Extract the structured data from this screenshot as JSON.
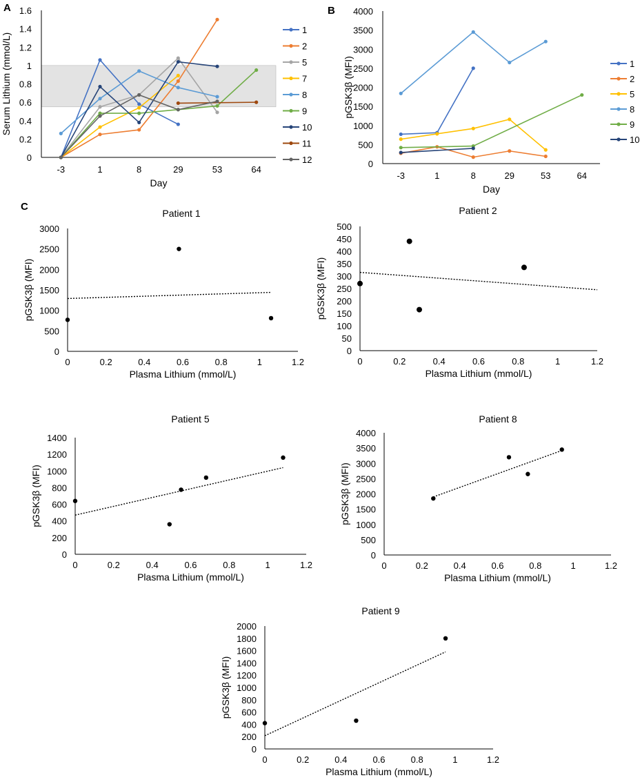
{
  "chart_data": [
    {
      "panel": "A",
      "type": "line",
      "title": "",
      "xlabel": "Day",
      "ylabel": "Serum Lithium (mmol/L)",
      "categories": [
        "-3",
        "1",
        "8",
        "29",
        "53",
        "64"
      ],
      "ylim": [
        0,
        1.6
      ],
      "yticks": [
        "0",
        "0.2",
        "0.4",
        "0.6",
        "0.8",
        "1",
        "1.2",
        "1.4",
        "1.6"
      ],
      "shaded_band": [
        0.55,
        1.0
      ],
      "band_color": "#e3e3e3",
      "grid": false,
      "legend": "right",
      "series": [
        {
          "name": "1",
          "color": "#4472C4",
          "values": [
            0,
            1.06,
            0.58,
            0.36,
            null,
            null
          ]
        },
        {
          "name": "2",
          "color": "#ED7D31",
          "values": [
            0,
            0.25,
            0.3,
            0.83,
            1.5,
            null
          ]
        },
        {
          "name": "5",
          "color": "#A5A5A5",
          "values": [
            0,
            0.55,
            0.68,
            1.08,
            0.49,
            null
          ]
        },
        {
          "name": "7",
          "color": "#FFC000",
          "values": [
            0,
            0.33,
            0.54,
            0.89,
            null,
            null
          ]
        },
        {
          "name": "8",
          "color": "#5B9BD5",
          "values": [
            0.26,
            0.64,
            0.94,
            0.76,
            0.66,
            null
          ]
        },
        {
          "name": "9",
          "color": "#70AD47",
          "values": [
            0,
            0.48,
            0.48,
            0.52,
            0.56,
            0.95
          ]
        },
        {
          "name": "10",
          "color": "#264478",
          "values": [
            0,
            0.77,
            0.38,
            1.04,
            0.99,
            null
          ]
        },
        {
          "name": "11",
          "color": "#9E480E",
          "values": [
            null,
            null,
            null,
            0.59,
            null,
            0.6
          ]
        },
        {
          "name": "12",
          "color": "#636363",
          "values": [
            0,
            0.45,
            0.68,
            0.52,
            0.61,
            null
          ]
        }
      ]
    },
    {
      "panel": "B",
      "type": "line",
      "title": "",
      "xlabel": "Day",
      "ylabel": "pGSK3β (MFI)",
      "categories": [
        "-3",
        "1",
        "8",
        "29",
        "53",
        "64"
      ],
      "ylim": [
        0,
        4000
      ],
      "yticks": [
        "0",
        "500",
        "1000",
        "1500",
        "2000",
        "2500",
        "3000",
        "3500",
        "4000"
      ],
      "grid": false,
      "legend": "right",
      "series": [
        {
          "name": "1",
          "color": "#4472C4",
          "values": [
            770,
            810,
            2500,
            null,
            null,
            null
          ]
        },
        {
          "name": "2",
          "color": "#ED7D31",
          "values": [
            270,
            440,
            170,
            330,
            190,
            null
          ]
        },
        {
          "name": "5",
          "color": "#FFC000",
          "values": [
            640,
            780,
            920,
            1160,
            360,
            null
          ]
        },
        {
          "name": "8",
          "color": "#5B9BD5",
          "values": [
            1840,
            null,
            3450,
            2650,
            3200,
            null
          ]
        },
        {
          "name": "9",
          "color": "#70AD47",
          "values": [
            420,
            null,
            460,
            null,
            null,
            1800
          ]
        },
        {
          "name": "10",
          "color": "#264478",
          "values": [
            290,
            null,
            400,
            null,
            null,
            null
          ]
        }
      ]
    },
    {
      "panel": "C",
      "type": "scatter",
      "title": "Patient 1",
      "xlabel": "Plasma Lithium (mmol/L)",
      "ylabel": "pGSK3β (MFI)",
      "xlim": [
        0,
        1.2
      ],
      "ylim": [
        0,
        3000
      ],
      "xticks": [
        "0",
        "0.2",
        "0.4",
        "0.6",
        "0.8",
        "1",
        "1.2"
      ],
      "yticks": [
        "0",
        "500",
        "1000",
        "1500",
        "2000",
        "2500",
        "3000"
      ],
      "points": [
        {
          "x": 0,
          "y": 770
        },
        {
          "x": 0.58,
          "y": 2500
        },
        {
          "x": 1.06,
          "y": 810
        }
      ],
      "trendline": {
        "x": [
          0,
          1.06
        ],
        "y": [
          1290,
          1440
        ]
      }
    },
    {
      "panel": "C",
      "type": "scatter",
      "title": "Patient 2",
      "xlabel": "Plasma Lithium (mmol/L)",
      "ylabel": "pGSK3β (MFI)",
      "xlim": [
        0,
        1.2
      ],
      "ylim": [
        0,
        500
      ],
      "xticks": [
        "0",
        "0.2",
        "0.4",
        "0.6",
        "0.8",
        "1",
        "1.2"
      ],
      "yticks": [
        "0",
        "50",
        "100",
        "150",
        "200",
        "250",
        "300",
        "350",
        "400",
        "450",
        "500"
      ],
      "points": [
        {
          "x": 0,
          "y": 270
        },
        {
          "x": 0.25,
          "y": 440
        },
        {
          "x": 0.3,
          "y": 165
        },
        {
          "x": 0.83,
          "y": 335
        }
      ],
      "trendline": {
        "x": [
          0,
          1.2
        ],
        "y": [
          315,
          245
        ]
      }
    },
    {
      "panel": "C",
      "type": "scatter",
      "title": "Patient 5",
      "xlabel": "Plasma Lithium (mmol/L)",
      "ylabel": "pGSK3β (MFI)",
      "xlim": [
        0,
        1.2
      ],
      "ylim": [
        0,
        1400
      ],
      "xticks": [
        "0",
        "0.2",
        "0.4",
        "0.6",
        "0.8",
        "1",
        "1.2"
      ],
      "yticks": [
        "0",
        "200",
        "400",
        "600",
        "800",
        "1000",
        "1200",
        "1400"
      ],
      "points": [
        {
          "x": 0,
          "y": 640
        },
        {
          "x": 0.49,
          "y": 360
        },
        {
          "x": 0.55,
          "y": 775
        },
        {
          "x": 0.68,
          "y": 920
        },
        {
          "x": 1.08,
          "y": 1160
        }
      ],
      "trendline": {
        "x": [
          0,
          1.08
        ],
        "y": [
          470,
          1040
        ]
      }
    },
    {
      "panel": "C",
      "type": "scatter",
      "title": "Patient 8",
      "xlabel": "Plasma Lithium (mmol/L)",
      "ylabel": "pGSK3β (MFI)",
      "xlim": [
        0,
        1.2
      ],
      "ylim": [
        0,
        4000
      ],
      "xticks": [
        "0",
        "0.2",
        "0.4",
        "0.6",
        "0.8",
        "1",
        "1.2"
      ],
      "yticks": [
        "0",
        "500",
        "1000",
        "1500",
        "2000",
        "2500",
        "3000",
        "3500",
        "4000"
      ],
      "points": [
        {
          "x": 0.26,
          "y": 1850
        },
        {
          "x": 0.66,
          "y": 3200
        },
        {
          "x": 0.76,
          "y": 2650
        },
        {
          "x": 0.94,
          "y": 3450
        }
      ],
      "trendline": {
        "x": [
          0.26,
          0.94
        ],
        "y": [
          1900,
          3420
        ]
      }
    },
    {
      "panel": "C",
      "type": "scatter",
      "title": "Patient 9",
      "xlabel": "Plasma Lithium (mmol/L)",
      "ylabel": "pGSK3β (MFI)",
      "xlim": [
        0,
        1.2
      ],
      "ylim": [
        0,
        2000
      ],
      "xticks": [
        "0",
        "0.2",
        "0.4",
        "0.6",
        "0.8",
        "1",
        "1.2"
      ],
      "yticks": [
        "0",
        "200",
        "400",
        "600",
        "800",
        "1000",
        "1200",
        "1400",
        "1600",
        "1800",
        "2000"
      ],
      "points": [
        {
          "x": 0,
          "y": 420
        },
        {
          "x": 0.48,
          "y": 460
        },
        {
          "x": 0.95,
          "y": 1800
        }
      ],
      "trendline": {
        "x": [
          0,
          0.95
        ],
        "y": [
          215,
          1580
        ]
      }
    }
  ]
}
